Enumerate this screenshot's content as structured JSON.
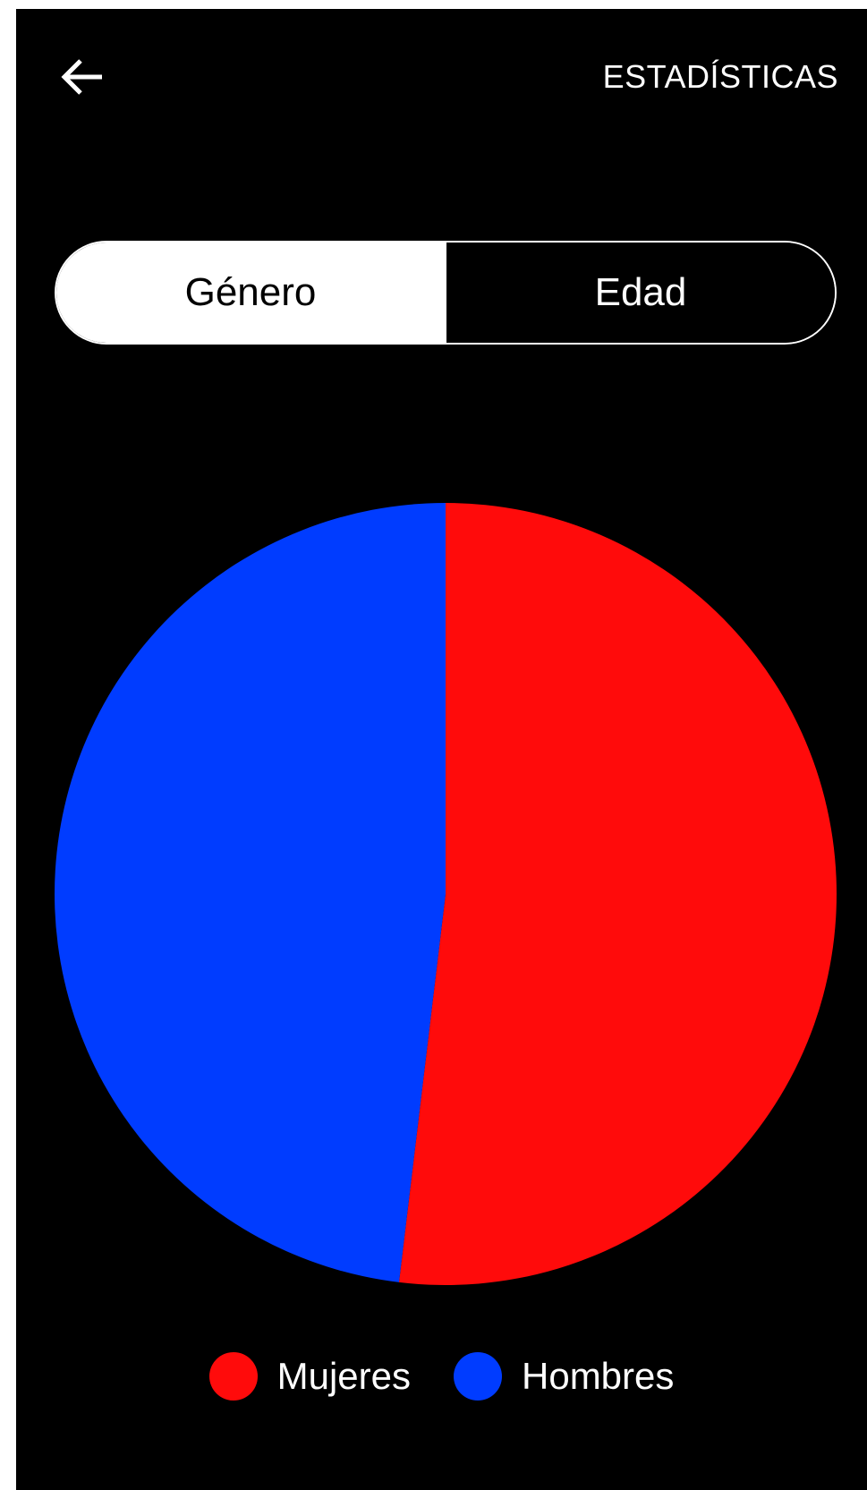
{
  "header": {
    "title": "ESTADÍSTICAS",
    "back_icon": "arrow-left-icon"
  },
  "segmented": {
    "options": [
      {
        "label": "Género",
        "active": true
      },
      {
        "label": "Edad",
        "active": false
      }
    ]
  },
  "chart_data": {
    "type": "pie",
    "categories": [
      "Mujeres",
      "Hombres"
    ],
    "values": [
      51.9,
      48.1
    ],
    "colors": [
      "#ff0b0b",
      "#003cff"
    ],
    "title": "",
    "legend": "bottom"
  },
  "legend": {
    "items": [
      {
        "label": "Mujeres",
        "color": "#ff0b0b"
      },
      {
        "label": "Hombres",
        "color": "#003cff"
      }
    ]
  }
}
